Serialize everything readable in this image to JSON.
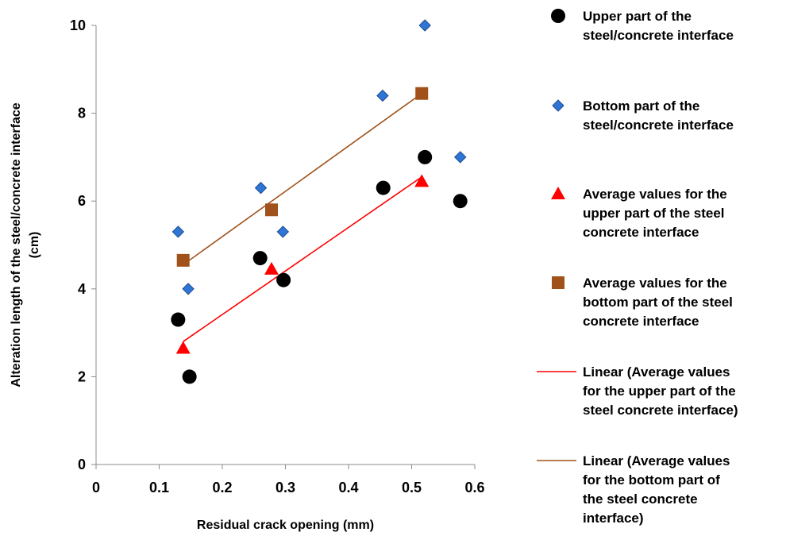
{
  "chart_data": {
    "type": "scatter",
    "xlabel": "Residual crack opening (mm)",
    "ylabel_lines": [
      "Alteration length of the steel/concrete interface",
      "(cm)"
    ],
    "xlim": [
      0,
      0.6
    ],
    "ylim": [
      0,
      10
    ],
    "x_ticks": [
      0,
      0.1,
      0.2,
      0.3,
      0.4,
      0.5,
      0.6
    ],
    "x_tick_labels": [
      "0",
      "0.1",
      "0.2",
      "0.3",
      "0.4",
      "0.5",
      "0.6"
    ],
    "y_ticks": [
      0,
      2,
      4,
      6,
      8,
      10
    ],
    "y_tick_labels": [
      "0",
      "2",
      "4",
      "6",
      "8",
      "10"
    ],
    "grid": false,
    "legend_position": "right",
    "series": [
      {
        "name_lines": [
          "Upper part of the",
          "steel/concrete interface"
        ],
        "marker": "circle",
        "color": "#000000",
        "points": [
          [
            0.13,
            3.3
          ],
          [
            0.148,
            2.0
          ],
          [
            0.26,
            4.7
          ],
          [
            0.297,
            4.2
          ],
          [
            0.455,
            6.3
          ],
          [
            0.521,
            7.0
          ],
          [
            0.577,
            6.0
          ]
        ]
      },
      {
        "name_lines": [
          "Bottom part of the",
          "steel/concrete interface"
        ],
        "marker": "diamond",
        "color": "#2e75d6",
        "points": [
          [
            0.13,
            5.3
          ],
          [
            0.146,
            4.0
          ],
          [
            0.261,
            6.3
          ],
          [
            0.296,
            5.3
          ],
          [
            0.454,
            8.4
          ],
          [
            0.521,
            10.0
          ],
          [
            0.577,
            7.0
          ]
        ]
      },
      {
        "name_lines": [
          "Average values  for the",
          "upper part of the steel",
          "concrete interface"
        ],
        "marker": "triangle",
        "color": "#ff0000",
        "points": [
          [
            0.138,
            2.65
          ],
          [
            0.278,
            4.45
          ],
          [
            0.516,
            6.45
          ]
        ]
      },
      {
        "name_lines": [
          "Average values  for the",
          "bottom part of the steel",
          "concrete interface"
        ],
        "marker": "square",
        "color": "#a0521a",
        "points": [
          [
            0.138,
            4.65
          ],
          [
            0.278,
            5.8
          ],
          [
            0.516,
            8.45
          ]
        ]
      },
      {
        "name_lines": [
          "Linear (Average values",
          "for the upper part of the",
          "steel concrete interface)"
        ],
        "marker": "line",
        "color": "#ff0000",
        "points": [
          [
            0.138,
            2.8
          ],
          [
            0.516,
            6.55
          ]
        ]
      },
      {
        "name_lines": [
          "Linear (Average values",
          "for the bottom part of",
          "the steel concrete",
          "interface)"
        ],
        "marker": "line",
        "color": "#a0521a",
        "points": [
          [
            0.138,
            4.55
          ],
          [
            0.516,
            8.45
          ]
        ]
      }
    ]
  }
}
